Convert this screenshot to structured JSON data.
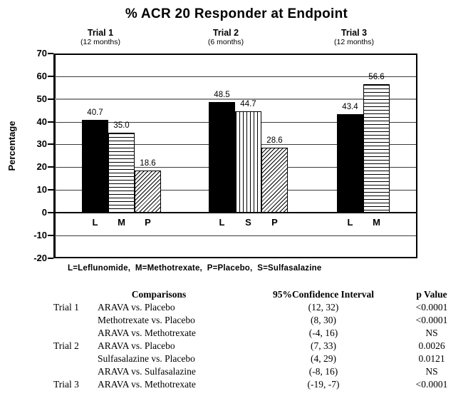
{
  "chart_data": {
    "type": "bar",
    "title": "% ACR 20 Responder at Endpoint",
    "ylabel": "Percentage",
    "ylim": [
      -20,
      70
    ],
    "ytick_step": 10,
    "grid": true,
    "groups": [
      {
        "name": "Trial 1",
        "duration": "(12 months)",
        "bars": [
          {
            "label": "L",
            "value": 40.7,
            "display": "40.7",
            "pattern": "solid"
          },
          {
            "label": "M",
            "value": 35.0,
            "display": "35.0",
            "pattern": "hlines"
          },
          {
            "label": "P",
            "value": 18.6,
            "display": "18.6",
            "pattern": "diag"
          }
        ]
      },
      {
        "name": "Trial 2",
        "duration": "(6 months)",
        "bars": [
          {
            "label": "L",
            "value": 48.5,
            "display": "48.5",
            "pattern": "solid"
          },
          {
            "label": "S",
            "value": 44.7,
            "display": "44.7",
            "pattern": "vlines"
          },
          {
            "label": "P",
            "value": 28.6,
            "display": "28.6",
            "pattern": "diag"
          }
        ]
      },
      {
        "name": "Trial 3",
        "duration": "(12 months)",
        "bars": [
          {
            "label": "L",
            "value": 43.4,
            "display": "43.4",
            "pattern": "solid"
          },
          {
            "label": "M",
            "value": 56.6,
            "display": "56.6",
            "pattern": "hlines"
          }
        ]
      }
    ],
    "footnote": "L=Leflunomide,  M=Methotrexate,  P=Placebo,  S=Sulfasalazine"
  },
  "colors": {
    "foreground": "#000000",
    "background": "#ffffff",
    "midline_gray": "#8f8f8f"
  },
  "table": {
    "headers": [
      "Comparisons",
      "95%Confidence Interval",
      "p Value"
    ],
    "rows": [
      {
        "trial": "Trial 1",
        "comparison": "ARAVA vs. Placebo",
        "ci": "(12, 32)",
        "p": "<0.0001"
      },
      {
        "trial": "",
        "comparison": "Methotrexate vs. Placebo",
        "ci": "(8, 30)",
        "p": "<0.0001"
      },
      {
        "trial": "",
        "comparison": "ARAVA vs. Methotrexate",
        "ci": "(-4, 16)",
        "p": "NS"
      },
      {
        "trial": "Trial 2",
        "comparison": "ARAVA vs. Placebo",
        "ci": "(7, 33)",
        "p": "0.0026"
      },
      {
        "trial": "",
        "comparison": "Sulfasalazine vs. Placebo",
        "ci": "(4, 29)",
        "p": "0.0121"
      },
      {
        "trial": "",
        "comparison": "ARAVA vs. Sulfasalazine",
        "ci": "(-8, 16)",
        "p": "NS"
      },
      {
        "trial": "Trial 3",
        "comparison": "ARAVA vs. Methotrexate",
        "ci": "(-19, -7)",
        "p": "<0.0001"
      }
    ]
  }
}
